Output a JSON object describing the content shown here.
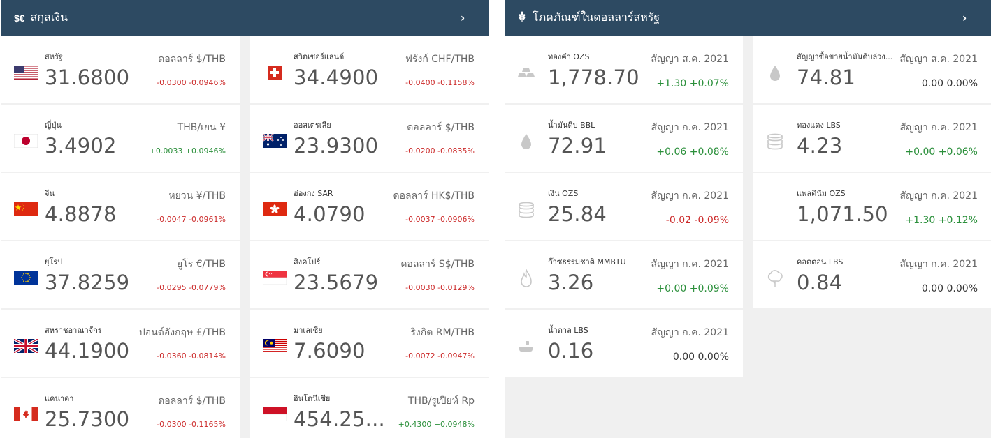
{
  "currencies": {
    "header_icon": "$€",
    "title": "สกุลเงิน",
    "arrow": "›",
    "items": [
      {
        "name": "สหรัฐ",
        "flag": "us",
        "value": "31.6800",
        "unit": "ดอลลาร์ $/THB",
        "change": "-0.0300",
        "pct": "-0.0946%",
        "trend": "neg"
      },
      {
        "name": "สวิตเซอร์แลนด์",
        "flag": "ch",
        "value": "34.4900",
        "unit": "ฟรังก์ CHF/THB",
        "change": "-0.0400",
        "pct": "-0.1158%",
        "trend": "neg"
      },
      {
        "name": "ญี่ปุ่น",
        "flag": "jp",
        "value": "3.4902",
        "unit": "THB/เยน ¥",
        "change": "+0.0033",
        "pct": "+0.0946%",
        "trend": "pos"
      },
      {
        "name": "ออสเตรเลีย",
        "flag": "au",
        "value": "23.9300",
        "unit": "ดอลลาร์ $/THB",
        "change": "-0.0200",
        "pct": "-0.0835%",
        "trend": "neg"
      },
      {
        "name": "จีน",
        "flag": "cn",
        "value": "4.8878",
        "unit": "หยวน ¥/THB",
        "change": "-0.0047",
        "pct": "-0.0961%",
        "trend": "neg"
      },
      {
        "name": "ฮ่องกง SAR",
        "flag": "hk",
        "value": "4.0790",
        "unit": "ดอลลาร์ HK$/THB",
        "change": "-0.0037",
        "pct": "-0.0906%",
        "trend": "neg"
      },
      {
        "name": "ยุโรป",
        "flag": "eu",
        "value": "37.8259",
        "unit": "ยูโร €/THB",
        "change": "-0.0295",
        "pct": "-0.0779%",
        "trend": "neg"
      },
      {
        "name": "สิงคโปร์",
        "flag": "sg",
        "value": "23.5679",
        "unit": "ดอลลาร์ S$/THB",
        "change": "-0.0030",
        "pct": "-0.0129%",
        "trend": "neg"
      },
      {
        "name": "สหราชอาณาจักร",
        "flag": "gb",
        "value": "44.1900",
        "unit": "ปอนด์อังกฤษ £/THB",
        "change": "-0.0360",
        "pct": "-0.0814%",
        "trend": "neg"
      },
      {
        "name": "มาเลเซีย",
        "flag": "my",
        "value": "7.6090",
        "unit": "ริงกิต RM/THB",
        "change": "-0.0072",
        "pct": "-0.0947%",
        "trend": "neg"
      },
      {
        "name": "แคนาดา",
        "flag": "ca",
        "value": "25.7300",
        "unit": "ดอลลาร์ $/THB",
        "change": "-0.0300",
        "pct": "-0.1165%",
        "trend": "neg"
      },
      {
        "name": "อินโดนีเซีย",
        "flag": "id",
        "value": "454.25...",
        "unit": "THB/รูเปียห์ Rp",
        "change": "+0.4300",
        "pct": "+0.0948%",
        "trend": "pos"
      }
    ]
  },
  "commodities": {
    "header_icon": "wheat-icon",
    "title": "โภคภัณฑ์ในดอลลาร์สหรัฐ",
    "arrow": "›",
    "items": [
      {
        "name": "ทองคำ OZS",
        "icon": "gold-bars",
        "value": "1,778.70",
        "unit": "สัญญา ส.ค. 2021",
        "change": "+1.30",
        "pct": "+0.07%",
        "trend": "pos"
      },
      {
        "name": "สัญญาซื้อขายน้ำมันดิบล่วง...",
        "icon": "oil-drop",
        "value": "74.81",
        "unit": "สัญญา ส.ค. 2021",
        "change": "0.00",
        "pct": "0.00%",
        "trend": "zero"
      },
      {
        "name": "น้ำมันดิบ BBL",
        "icon": "oil-drop",
        "value": "72.91",
        "unit": "สัญญา ก.ค. 2021",
        "change": "+0.06",
        "pct": "+0.08%",
        "trend": "pos"
      },
      {
        "name": "ทองแดง LBS",
        "icon": "coins",
        "value": "4.23",
        "unit": "สัญญา ก.ค. 2021",
        "change": "+0.00",
        "pct": "+0.06%",
        "trend": "pos"
      },
      {
        "name": "เงิน OZS",
        "icon": "coins",
        "value": "25.84",
        "unit": "สัญญา ก.ค. 2021",
        "change": "-0.02",
        "pct": "-0.09%",
        "trend": "neg"
      },
      {
        "name": "แพลตินัม OZS",
        "icon": "",
        "value": "1,071.50",
        "unit": "สัญญา ก.ค. 2021",
        "change": "+1.30",
        "pct": "+0.12%",
        "trend": "pos"
      },
      {
        "name": "ก๊าซธรรมชาติ MMBTU",
        "icon": "flame",
        "value": "3.26",
        "unit": "สัญญา ก.ค. 2021",
        "change": "+0.00",
        "pct": "+0.09%",
        "trend": "pos"
      },
      {
        "name": "คอตตอน LBS",
        "icon": "cotton",
        "value": "0.84",
        "unit": "สัญญา ก.ค. 2021",
        "change": "0.00",
        "pct": "0.00%",
        "trend": "zero"
      },
      {
        "name": "น้ำตาล LBS",
        "icon": "sugar",
        "value": "0.16",
        "unit": "สัญญา ก.ค. 2021",
        "change": "0.00",
        "pct": "0.00%",
        "trend": "zero"
      }
    ]
  }
}
